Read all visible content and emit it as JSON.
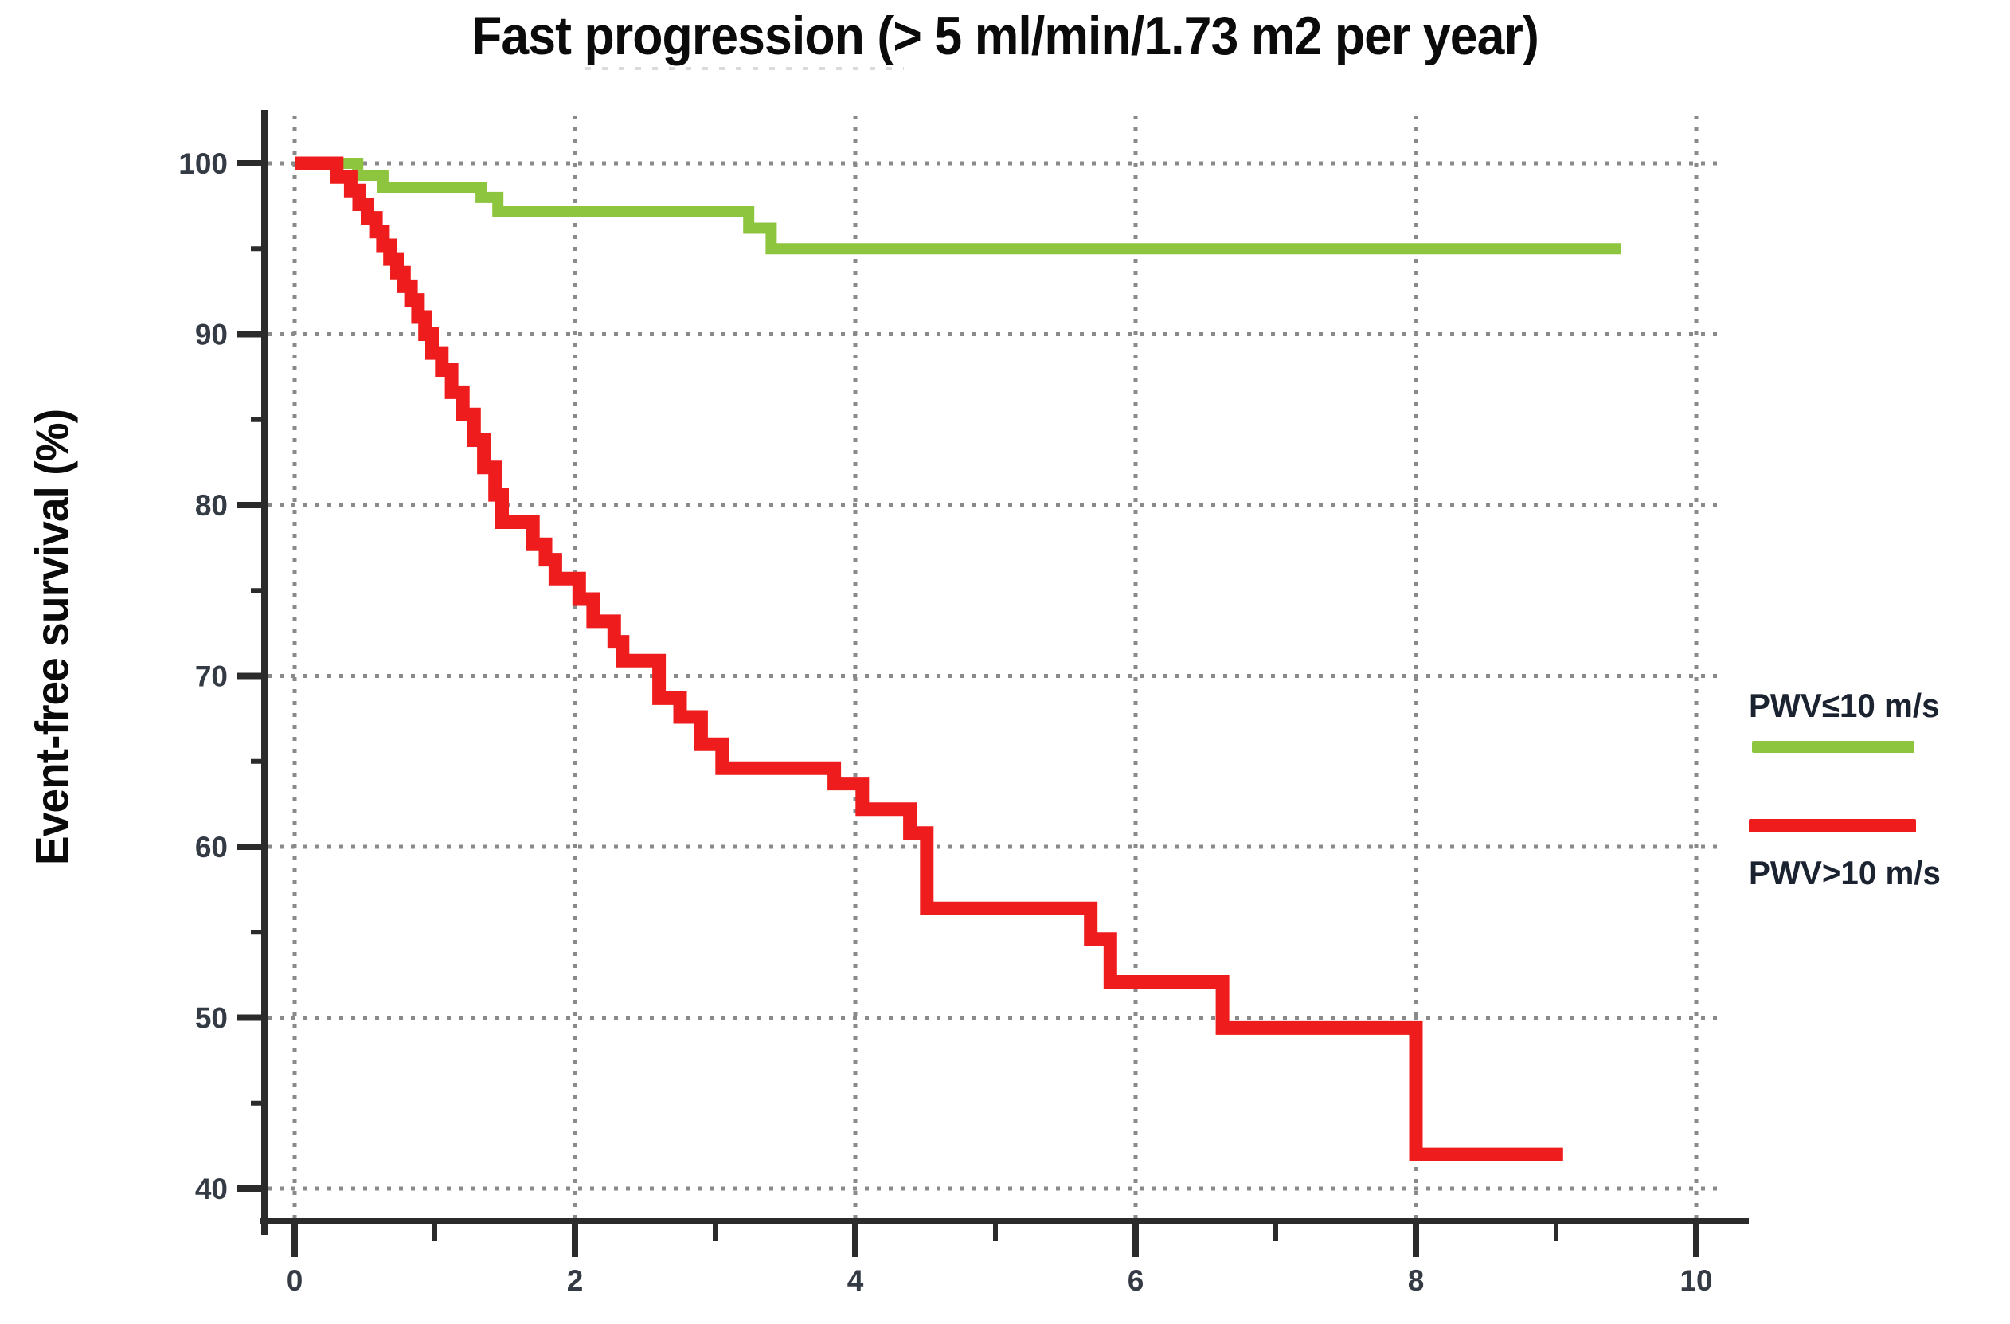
{
  "chart_data": {
    "type": "line",
    "subtype": "kaplan-meier-step",
    "title": "Fast progression (> 5 ml/min/1.73 m2 per year)",
    "xlabel": "",
    "ylabel": "Event-free survival (%)",
    "xlim": [
      0,
      10
    ],
    "ylim": [
      40,
      100
    ],
    "x_ticks": [
      0,
      2,
      4,
      6,
      8,
      10
    ],
    "x_minor_ticks": [
      1,
      3,
      5,
      7,
      9
    ],
    "y_ticks": [
      100,
      90,
      80,
      70,
      60,
      50,
      40
    ],
    "y_minor_ticks": [
      95,
      85,
      75,
      65,
      55,
      45
    ],
    "grid": "dotted",
    "legend_position": "right",
    "series": [
      {
        "name": "PWV≤10 m/s",
        "color": "#8dc63e",
        "end_x": 9.46,
        "step_points": [
          [
            0,
            100
          ],
          [
            0.45,
            99.3
          ],
          [
            0.63,
            98.6
          ],
          [
            1.33,
            98.0
          ],
          [
            1.45,
            97.2
          ],
          [
            3.24,
            96.2
          ],
          [
            3.4,
            95.0
          ]
        ]
      },
      {
        "name": "PWV>10 m/s",
        "color": "#ee1c1c",
        "end_x": 9.05,
        "step_points": [
          [
            0,
            100
          ],
          [
            0.3,
            99.2
          ],
          [
            0.4,
            98.4
          ],
          [
            0.46,
            97.6
          ],
          [
            0.52,
            96.8
          ],
          [
            0.58,
            96.0
          ],
          [
            0.63,
            95.2
          ],
          [
            0.68,
            94.4
          ],
          [
            0.73,
            93.6
          ],
          [
            0.78,
            92.8
          ],
          [
            0.83,
            92.0
          ],
          [
            0.88,
            91.0
          ],
          [
            0.93,
            90.0
          ],
          [
            0.98,
            88.9
          ],
          [
            1.05,
            87.9
          ],
          [
            1.12,
            86.6
          ],
          [
            1.2,
            85.3
          ],
          [
            1.28,
            83.8
          ],
          [
            1.35,
            82.2
          ],
          [
            1.43,
            80.6
          ],
          [
            1.48,
            79.0
          ],
          [
            1.7,
            77.7
          ],
          [
            1.79,
            76.8
          ],
          [
            1.86,
            75.7
          ],
          [
            2.03,
            74.5
          ],
          [
            2.13,
            73.2
          ],
          [
            2.28,
            72.0
          ],
          [
            2.34,
            70.9
          ],
          [
            2.6,
            68.7
          ],
          [
            2.75,
            67.6
          ],
          [
            2.9,
            66.0
          ],
          [
            3.05,
            64.6
          ],
          [
            3.85,
            63.7
          ],
          [
            4.05,
            62.2
          ],
          [
            4.39,
            60.8
          ],
          [
            4.51,
            56.4
          ],
          [
            5.68,
            54.6
          ],
          [
            5.82,
            52.1
          ],
          [
            6.62,
            49.4
          ],
          [
            8.0,
            42.0
          ]
        ]
      }
    ]
  }
}
